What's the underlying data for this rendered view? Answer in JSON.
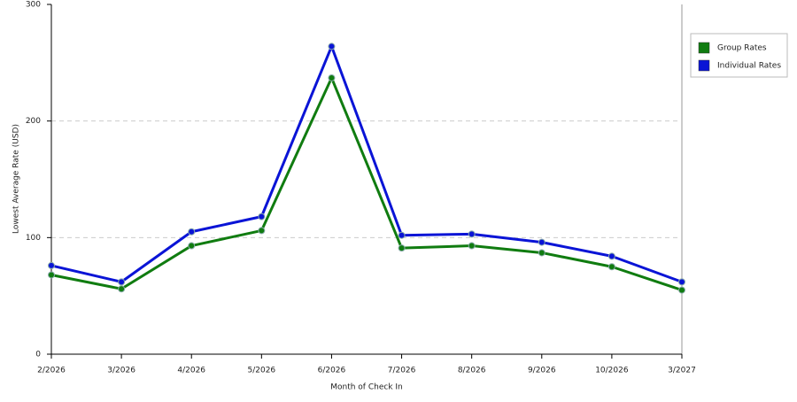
{
  "chart_data": {
    "type": "line",
    "x_label": "Month of Check In",
    "y_label": "Lowest Average Rate (USD)",
    "categories": [
      "2/2026",
      "3/2026",
      "4/2026",
      "5/2026",
      "6/2026",
      "7/2026",
      "8/2026",
      "9/2026",
      "10/2026",
      "3/2027"
    ],
    "series": [
      {
        "name": "Group Rates",
        "color": "#107c10",
        "values": [
          68,
          56,
          93,
          106,
          237,
          91,
          93,
          87,
          75,
          55
        ]
      },
      {
        "name": "Individual Rates",
        "color": "#0a14d6",
        "values": [
          76,
          62,
          105,
          118,
          264,
          102,
          103,
          96,
          84,
          62
        ]
      }
    ],
    "ylim": [
      0,
      300
    ],
    "yticks": [
      0,
      100,
      200,
      300
    ],
    "grid": true,
    "legend": "right"
  }
}
